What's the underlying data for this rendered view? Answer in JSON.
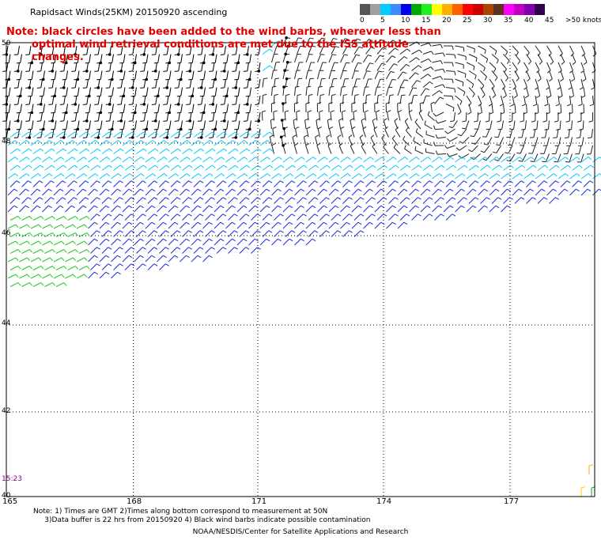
{
  "title": "Rapidsact Winds(25KM) 20150920 ascending",
  "note": {
    "line1": "Note: black circles have been added to the wind barbs, wherever less than",
    "line2": "optimal wind retrieval conditions are met due to the ISS attitude changes."
  },
  "legend": {
    "colors": [
      "#555555",
      "#a0a0a0",
      "#00ccff",
      "#3a8cff",
      "#0000ee",
      "#00aa00",
      "#22ee22",
      "#ffff00",
      "#ffb000",
      "#ff6000",
      "#ff0000",
      "#cc0000",
      "#aa4400",
      "#603020",
      "#ff00ff",
      "#c000c0",
      "#8000b0",
      "#300050"
    ],
    "labels": [
      "0",
      "5",
      "10",
      "15",
      "20",
      "25",
      "30",
      "35",
      "40",
      "45",
      ">50 knots"
    ],
    "units": "knots"
  },
  "axes": {
    "y_labels": [
      "50",
      "48",
      "46",
      "44",
      "42",
      "40"
    ],
    "x_labels": [
      "165",
      "168",
      "171",
      "174",
      "177"
    ],
    "lat_range": [
      40,
      50
    ],
    "lon_range": [
      165,
      178
    ]
  },
  "time_label": "15:23",
  "footnote": "Note: 1) Times are GMT 2)Times along bottom correspond to measurement at 50N\n     3)Data buffer is 22 hrs from 20150920 4) Black wind barbs indicate possible contamination",
  "credit": "NOAA/NESDIS/Center for Satellite Applications and Research"
}
